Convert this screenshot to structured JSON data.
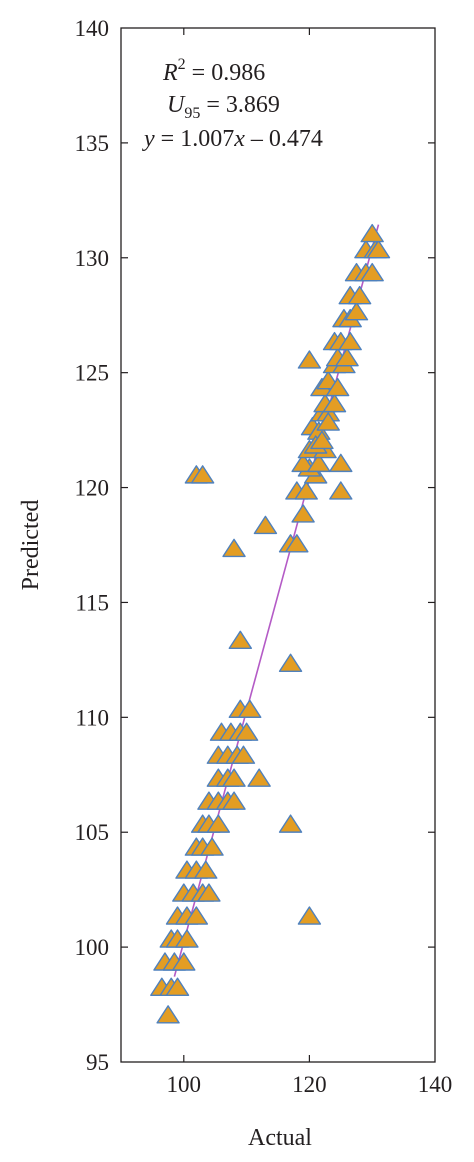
{
  "chart_data": {
    "type": "scatter",
    "xlabel": "Actual",
    "ylabel": "Predicted",
    "xlim": [
      90,
      140
    ],
    "ylim": [
      95,
      140
    ],
    "x_ticks": [
      100,
      120,
      140
    ],
    "y_ticks": [
      95,
      100,
      105,
      110,
      115,
      120,
      125,
      130,
      135,
      140
    ],
    "x_tick_labels": [
      "100",
      "120",
      "140"
    ],
    "y_tick_labels": [
      "95",
      "100",
      "105",
      "110",
      "115",
      "120",
      "125",
      "130",
      "135",
      "140"
    ],
    "grid": false,
    "marker": "triangle",
    "marker_fill": "#e39d23",
    "marker_edge": "#4f81bd",
    "fit_line_color": "#b45bc6",
    "annotations": {
      "r2_var": "R",
      "r2_sup": "2",
      "r2_value": " = 0.986",
      "u_var": "U",
      "u_sub": "95",
      "u_value": " = 3.869",
      "eq_y": "y",
      "eq_mid": " = 1.007",
      "eq_x": "x",
      "eq_end": " – 0.474"
    },
    "fit": {
      "slope": 1.007,
      "intercept": -0.474,
      "x_range": [
        98.5,
        131
      ]
    },
    "points": [
      [
        97.5,
        97.0
      ],
      [
        96.5,
        98.2
      ],
      [
        98.0,
        98.2
      ],
      [
        99.0,
        98.2
      ],
      [
        97.0,
        99.3
      ],
      [
        98.5,
        99.3
      ],
      [
        100.0,
        99.3
      ],
      [
        98.0,
        100.3
      ],
      [
        99.0,
        100.3
      ],
      [
        100.5,
        100.3
      ],
      [
        99.0,
        101.3
      ],
      [
        100.5,
        101.3
      ],
      [
        102.0,
        101.3
      ],
      [
        100.0,
        102.3
      ],
      [
        101.5,
        102.3
      ],
      [
        103.0,
        102.3
      ],
      [
        104.0,
        102.3
      ],
      [
        100.5,
        103.3
      ],
      [
        102.0,
        103.3
      ],
      [
        103.5,
        103.3
      ],
      [
        102.0,
        104.3
      ],
      [
        103.0,
        104.3
      ],
      [
        104.5,
        104.3
      ],
      [
        103.0,
        105.3
      ],
      [
        104.0,
        105.3
      ],
      [
        105.5,
        105.3
      ],
      [
        104.0,
        106.3
      ],
      [
        105.5,
        106.3
      ],
      [
        107.0,
        106.3
      ],
      [
        108.0,
        106.3
      ],
      [
        105.5,
        107.3
      ],
      [
        107.0,
        107.3
      ],
      [
        108.0,
        107.3
      ],
      [
        112.0,
        107.3
      ],
      [
        105.5,
        108.3
      ],
      [
        107.0,
        108.3
      ],
      [
        108.5,
        108.3
      ],
      [
        109.5,
        108.3
      ],
      [
        106.0,
        109.3
      ],
      [
        107.5,
        109.3
      ],
      [
        109.0,
        109.3
      ],
      [
        110.0,
        109.3
      ],
      [
        109.0,
        110.3
      ],
      [
        110.5,
        110.3
      ],
      [
        102.0,
        120.5
      ],
      [
        103.0,
        120.5
      ],
      [
        108.0,
        117.3
      ],
      [
        113.0,
        118.3
      ],
      [
        109.0,
        113.3
      ],
      [
        117.0,
        112.3
      ],
      [
        117.0,
        105.3
      ],
      [
        120.0,
        101.3
      ],
      [
        117.0,
        117.5
      ],
      [
        118.0,
        117.5
      ],
      [
        119.0,
        118.8
      ],
      [
        118.0,
        119.8
      ],
      [
        119.5,
        119.8
      ],
      [
        121.0,
        120.5
      ],
      [
        120.0,
        120.8
      ],
      [
        119.0,
        121.0
      ],
      [
        121.5,
        121.0
      ],
      [
        120.0,
        121.6
      ],
      [
        122.5,
        121.6
      ],
      [
        120.5,
        122.6
      ],
      [
        121.5,
        122.4
      ],
      [
        122.0,
        123.2
      ],
      [
        123.0,
        123.2
      ],
      [
        122.5,
        123.6
      ],
      [
        124.0,
        123.6
      ],
      [
        122.0,
        124.3
      ],
      [
        123.0,
        124.6
      ],
      [
        124.5,
        124.3
      ],
      [
        124.0,
        125.3
      ],
      [
        125.5,
        125.3
      ],
      [
        124.5,
        125.6
      ],
      [
        126.0,
        125.6
      ],
      [
        124.0,
        126.3
      ],
      [
        125.0,
        126.3
      ],
      [
        126.5,
        126.3
      ],
      [
        125.5,
        127.3
      ],
      [
        126.5,
        127.3
      ],
      [
        127.5,
        127.6
      ],
      [
        126.5,
        128.3
      ],
      [
        128.0,
        128.3
      ],
      [
        127.5,
        129.3
      ],
      [
        129.0,
        129.3
      ],
      [
        130.0,
        129.3
      ],
      [
        129.0,
        130.3
      ],
      [
        130.5,
        130.3
      ],
      [
        131.0,
        130.3
      ],
      [
        130.0,
        131.0
      ],
      [
        120.0,
        125.5
      ],
      [
        125.0,
        121.0
      ],
      [
        125.0,
        119.8
      ],
      [
        123.0,
        122.8
      ],
      [
        121.0,
        121.8
      ],
      [
        122.0,
        122.0
      ]
    ]
  }
}
